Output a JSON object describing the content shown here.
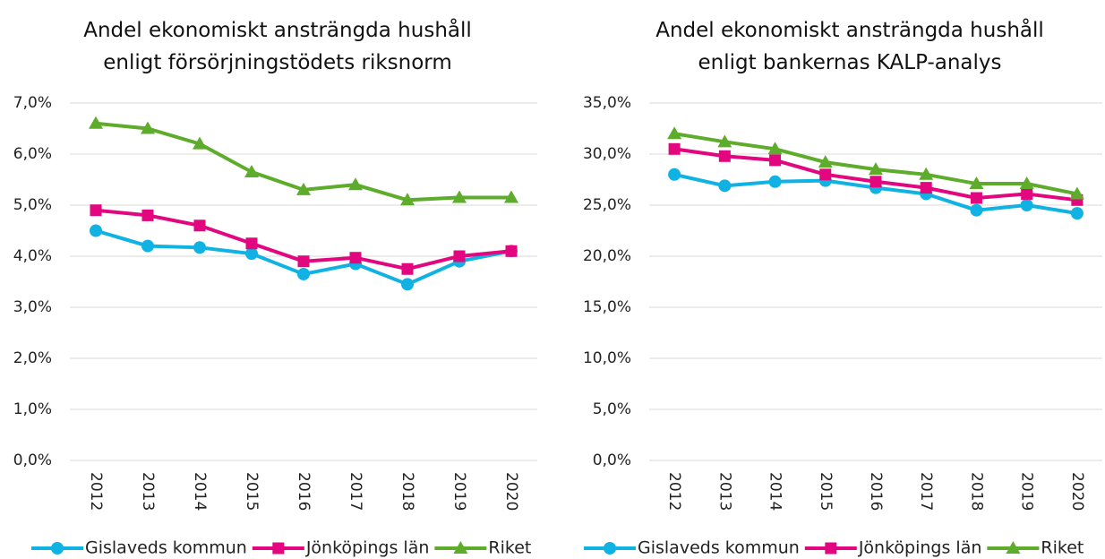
{
  "chart_data": [
    {
      "type": "line",
      "title": "Andel ekonomiskt ansträngda hushåll enligt försörjningstödets riksnorm",
      "categories": [
        "2012",
        "2013",
        "2014",
        "2015",
        "2016",
        "2017",
        "2018",
        "2019",
        "2020"
      ],
      "series": [
        {
          "name": "Gislaveds kommun",
          "color": "#0fb2e3",
          "marker": "circle",
          "values": [
            4.5,
            4.2,
            4.17,
            4.05,
            3.65,
            3.85,
            3.45,
            3.9,
            4.1
          ]
        },
        {
          "name": "Jönköpings län",
          "color": "#e2067f",
          "marker": "square",
          "values": [
            4.9,
            4.8,
            4.6,
            4.25,
            3.9,
            3.97,
            3.75,
            4.0,
            4.1
          ]
        },
        {
          "name": "Riket",
          "color": "#5dac2b",
          "marker": "triangle",
          "values": [
            6.6,
            6.5,
            6.2,
            5.65,
            5.3,
            5.4,
            5.1,
            5.15,
            5.15
          ]
        }
      ],
      "ylim": [
        0,
        7
      ],
      "yticks": [
        {
          "value": 0,
          "label": "0,0%"
        },
        {
          "value": 1,
          "label": "1,0%"
        },
        {
          "value": 2,
          "label": "2,0%"
        },
        {
          "value": 3,
          "label": "3,0%"
        },
        {
          "value": 4,
          "label": "4,0%"
        },
        {
          "value": 5,
          "label": "5,0%"
        },
        {
          "value": 6,
          "label": "6,0%"
        },
        {
          "value": 7,
          "label": "7,0%"
        }
      ],
      "grid": true,
      "legend": "bottom"
    },
    {
      "type": "line",
      "title": "Andel ekonomiskt ansträngda hushåll enligt bankernas KALP-analys",
      "categories": [
        "2012",
        "2013",
        "2014",
        "2015",
        "2016",
        "2017",
        "2018",
        "2019",
        "2020"
      ],
      "series": [
        {
          "name": "Gislaveds kommun",
          "color": "#0fb2e3",
          "marker": "circle",
          "values": [
            28,
            26.9,
            27.3,
            27.4,
            26.7,
            26.1,
            24.5,
            25,
            24.2
          ]
        },
        {
          "name": "Jönköpings län",
          "color": "#e2067f",
          "marker": "square",
          "values": [
            30.5,
            29.8,
            29.4,
            28,
            27.3,
            26.7,
            25.7,
            26.1,
            25.5
          ]
        },
        {
          "name": "Riket",
          "color": "#5dac2b",
          "marker": "triangle",
          "values": [
            32,
            31.2,
            30.5,
            29.2,
            28.5,
            28,
            27.1,
            27.1,
            26.1
          ]
        }
      ],
      "ylim": [
        0,
        35
      ],
      "yticks": [
        {
          "value": 0,
          "label": "0,0%"
        },
        {
          "value": 5,
          "label": "5,0%"
        },
        {
          "value": 10,
          "label": "10,0%"
        },
        {
          "value": 15,
          "label": "15,0%"
        },
        {
          "value": 20,
          "label": "20,0%"
        },
        {
          "value": 25,
          "label": "25,0%"
        },
        {
          "value": 30,
          "label": "30,0%"
        },
        {
          "value": 35,
          "label": "35,0%"
        }
      ],
      "grid": true,
      "legend": "bottom"
    }
  ]
}
